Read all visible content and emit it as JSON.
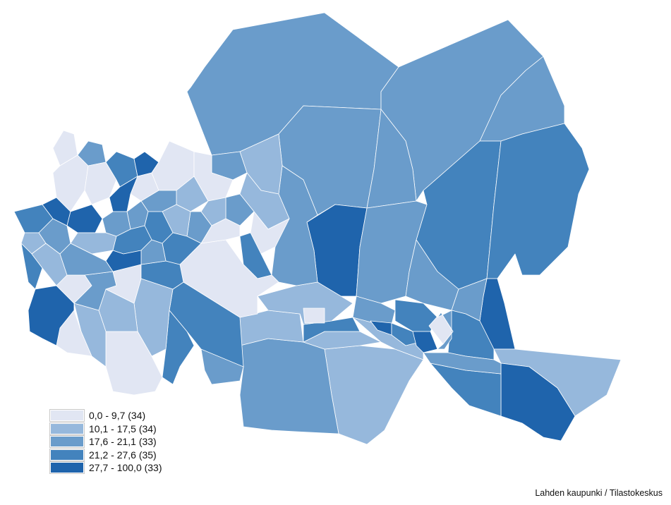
{
  "colors": {
    "class_1": "#e1e6f3",
    "class_2": "#96b8dc",
    "class_3": "#6a9ccb",
    "class_4": "#4383bd",
    "class_5": "#1f64ac",
    "border": "#ffffff"
  },
  "legend": {
    "items": [
      {
        "label": "0,0 - 9,7 (34)",
        "color": "#e1e6f3"
      },
      {
        "label": "10,1 - 17,5 (34)",
        "color": "#96b8dc"
      },
      {
        "label": "17,6 - 21,1 (33)",
        "color": "#6a9ccb"
      },
      {
        "label": "21,2 - 27,6 (35)",
        "color": "#4383bd"
      },
      {
        "label": "27,7 - 100,0 (33)",
        "color": "#1f64ac"
      }
    ]
  },
  "source": "Lahden kaupunki / Tilastokeskus"
}
